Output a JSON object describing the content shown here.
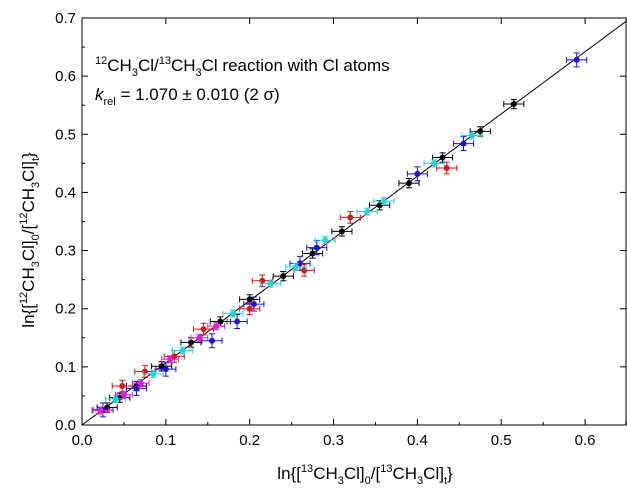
{
  "chart_data": {
    "type": "scatter",
    "xlabel": {
      "prefix": "ln{[",
      "iso": "13",
      "a": "CH",
      "sub1": "3",
      "b": "Cl]",
      "sub2": "0",
      "c": "/[",
      "iso2": "13",
      "d": "CH",
      "sub3": "3",
      "e": "Cl]",
      "sub4": "t",
      "suffix": "}"
    },
    "ylabel": {
      "prefix": "ln{[",
      "iso": "12",
      "a": "CH",
      "sub1": "3",
      "b": "Cl]",
      "sub2": "0",
      "c": "/[",
      "iso2": "12",
      "d": "CH",
      "sub3": "3",
      "e": "Cl]",
      "sub4": "t",
      "suffix": "}"
    },
    "annotation_line1": {
      "iso1": "12",
      "a": "CH",
      "sub1": "3",
      "b": "Cl/",
      "iso2": "13",
      "c": "CH",
      "sub2": "3",
      "d": "Cl reaction with Cl atoms"
    },
    "annotation_line2": {
      "k": "k",
      "sub": "rel",
      "rest": " = 1.070 ± 0.010 (2 σ)"
    },
    "xlim": [
      0.0,
      0.65
    ],
    "ylim": [
      0.0,
      0.7
    ],
    "xticks": [
      "0.0",
      "0.1",
      "0.2",
      "0.3",
      "0.4",
      "0.5",
      "0.6"
    ],
    "yticks": [
      "0.0",
      "0.1",
      "0.2",
      "0.3",
      "0.4",
      "0.5",
      "0.6",
      "0.7"
    ],
    "grid": false,
    "fit_line": {
      "slope": 1.07,
      "intercept": 0.0
    },
    "series": [
      {
        "color": "#000000",
        "points": [
          [
            0.03,
            0.03
          ],
          [
            0.045,
            0.047
          ],
          [
            0.065,
            0.067
          ],
          [
            0.095,
            0.101
          ],
          [
            0.13,
            0.142
          ],
          [
            0.165,
            0.178
          ],
          [
            0.2,
            0.216
          ],
          [
            0.24,
            0.256
          ],
          [
            0.275,
            0.295
          ],
          [
            0.31,
            0.333
          ],
          [
            0.355,
            0.378
          ],
          [
            0.39,
            0.416
          ],
          [
            0.43,
            0.46
          ],
          [
            0.475,
            0.505
          ],
          [
            0.515,
            0.552
          ]
        ],
        "xerr": 0.012,
        "yerr": 0.008
      },
      {
        "color": "#1515d8",
        "points": [
          [
            0.025,
            0.026
          ],
          [
            0.065,
            0.063
          ],
          [
            0.1,
            0.096
          ],
          [
            0.155,
            0.145
          ],
          [
            0.185,
            0.178
          ],
          [
            0.205,
            0.208
          ],
          [
            0.26,
            0.278
          ],
          [
            0.28,
            0.305
          ],
          [
            0.4,
            0.432
          ],
          [
            0.455,
            0.484
          ],
          [
            0.59,
            0.628
          ]
        ],
        "xerr": 0.012,
        "yerr": 0.012
      },
      {
        "color": "#d81515",
        "points": [
          [
            0.048,
            0.067
          ],
          [
            0.075,
            0.092
          ],
          [
            0.11,
            0.118
          ],
          [
            0.145,
            0.165
          ],
          [
            0.2,
            0.2
          ],
          [
            0.215,
            0.248
          ],
          [
            0.265,
            0.266
          ],
          [
            0.32,
            0.357
          ],
          [
            0.435,
            0.442
          ]
        ],
        "xerr": 0.012,
        "yerr": 0.01
      },
      {
        "color": "#1fd6d6",
        "points": [
          [
            0.04,
            0.045
          ],
          [
            0.085,
            0.088
          ],
          [
            0.12,
            0.128
          ],
          [
            0.18,
            0.192
          ],
          [
            0.225,
            0.243
          ],
          [
            0.255,
            0.272
          ],
          [
            0.29,
            0.318
          ],
          [
            0.34,
            0.367
          ],
          [
            0.36,
            0.385
          ],
          [
            0.42,
            0.45
          ],
          [
            0.465,
            0.498
          ]
        ],
        "xerr": 0.012,
        "yerr": 0.006
      },
      {
        "color": "#e01de0",
        "points": [
          [
            0.022,
            0.025
          ],
          [
            0.05,
            0.052
          ],
          [
            0.07,
            0.072
          ],
          [
            0.105,
            0.113
          ],
          [
            0.14,
            0.15
          ],
          [
            0.16,
            0.17
          ]
        ],
        "xerr": 0.01,
        "yerr": 0.006
      }
    ]
  }
}
